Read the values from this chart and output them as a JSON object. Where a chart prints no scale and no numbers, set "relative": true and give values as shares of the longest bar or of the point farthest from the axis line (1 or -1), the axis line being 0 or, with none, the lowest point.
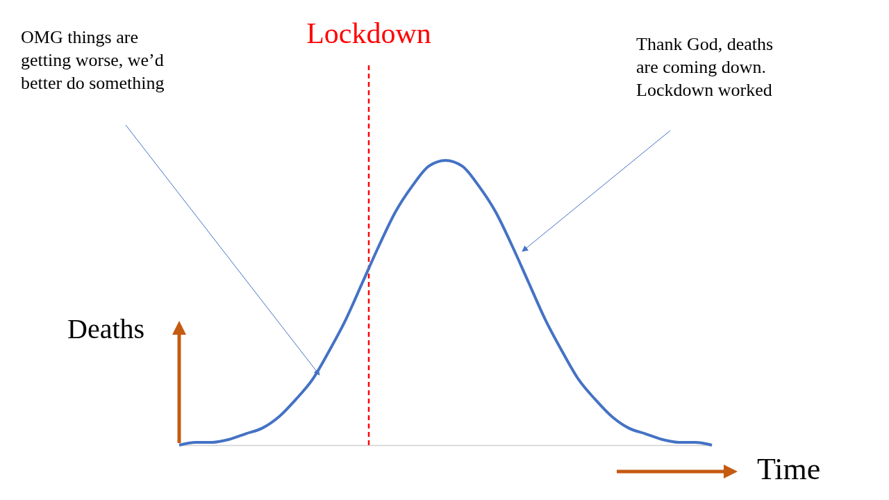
{
  "chart_data": {
    "type": "line",
    "relative": true,
    "xlabel": "Time",
    "ylabel": "Deaths",
    "categories": [
      null,
      null,
      null,
      null,
      null,
      null,
      null,
      null,
      null,
      null,
      null,
      null,
      null,
      null,
      null,
      null,
      null,
      null,
      null,
      null,
      null,
      null,
      null,
      null,
      null,
      null,
      null,
      null,
      null,
      null,
      null,
      null,
      null
    ],
    "series": [
      {
        "color": "#4472c4",
        "values": [
          0,
          0.01,
          0.01,
          0.02,
          0.04,
          0.06,
          0.1,
          0.16,
          0.23,
          0.33,
          0.44,
          0.57,
          0.7,
          0.82,
          0.91,
          0.98,
          1,
          0.98,
          0.91,
          0.82,
          0.7,
          0.57,
          0.44,
          0.33,
          0.23,
          0.16,
          0.1,
          0.06,
          0.04,
          0.02,
          0.01,
          0.01,
          0
        ]
      }
    ],
    "annotations": [
      "Lockdown",
      "OMG things are\ngetting worse, we’d\nbetter do something",
      "Thank God, deaths\nare coming down.\nLockdown worked"
    ],
    "marker": "none",
    "line_style": "solid",
    "grid": false
  }
}
